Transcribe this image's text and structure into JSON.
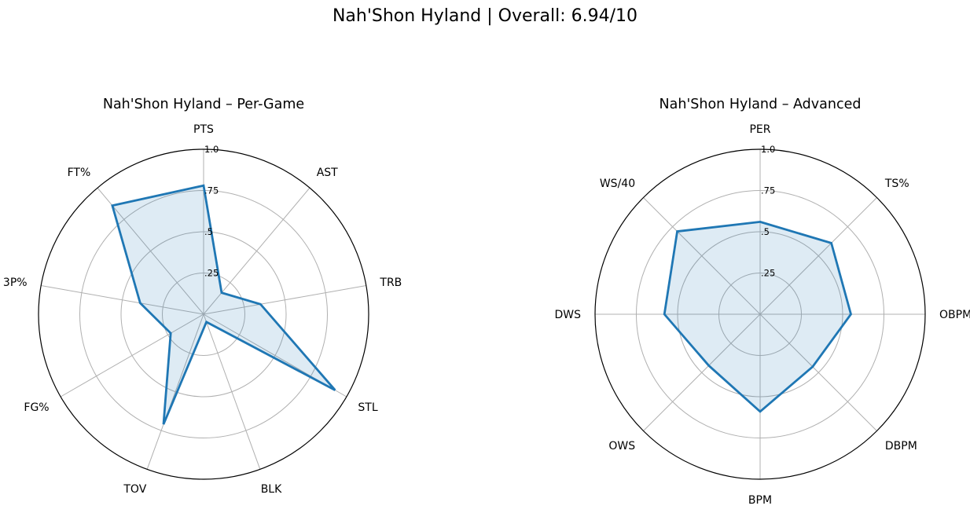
{
  "title": "Nah'Shon Hyland | Overall: 6.94/10",
  "chart_data": [
    {
      "type": "radar",
      "title": "Nah'Shon Hyland – Per-Game",
      "categories": [
        "PTS",
        "AST",
        "TRB",
        "STL",
        "BLK",
        "TOV",
        "FG%",
        "3P%",
        "FT%"
      ],
      "values": [
        0.78,
        0.17,
        0.35,
        0.92,
        0.05,
        0.71,
        0.23,
        0.39,
        0.86
      ],
      "rlim": [
        0,
        1.0
      ],
      "rticks": [
        0.25,
        0.5,
        0.75,
        1.0
      ],
      "rtick_labels": [
        ".25",
        ".5",
        ".75",
        "1.0"
      ],
      "grid": true,
      "line_color": "#1f77b4",
      "fill_color": "#1f77b4"
    },
    {
      "type": "radar",
      "title": "Nah'Shon Hyland – Advanced",
      "categories": [
        "PER",
        "TS%",
        "OBPM",
        "DBPM",
        "BPM",
        "OWS",
        "DWS",
        "WS/40"
      ],
      "values": [
        0.56,
        0.61,
        0.55,
        0.45,
        0.59,
        0.44,
        0.58,
        0.71
      ],
      "rlim": [
        0,
        1.0
      ],
      "rticks": [
        0.25,
        0.5,
        0.75,
        1.0
      ],
      "rtick_labels": [
        ".25",
        ".5",
        ".75",
        "1.0"
      ],
      "grid": true,
      "line_color": "#1f77b4",
      "fill_color": "#1f77b4"
    }
  ]
}
